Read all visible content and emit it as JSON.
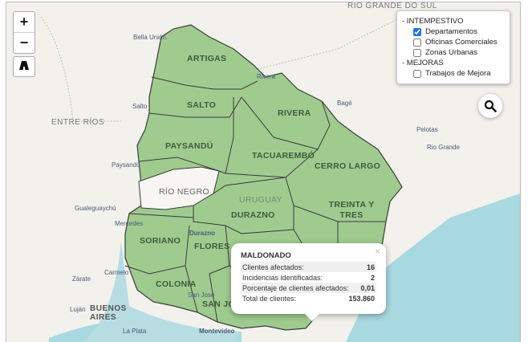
{
  "colors": {
    "department_fill": "#9fcb8f",
    "department_stroke": "#3b3b3b",
    "water": "#a8d8e0",
    "land": "#f3f1ec",
    "checkbox_accent": "#1e73e8"
  },
  "map_labels": {
    "regions": [
      "RIO GRANDE DO SUL",
      "ENTRE RÍOS",
      "BUENOS AIRES"
    ],
    "cities": [
      "Bella Unión",
      "Rivera",
      "Salto",
      "Bagé",
      "Paysandú",
      "Pelotas",
      "Rio Grande",
      "Gualeguaychú",
      "Mercedes",
      "Carmelo",
      "Zárate",
      "Luján",
      "La Plata",
      "San José",
      "Montevideo",
      "Durazno"
    ],
    "departments": [
      "ARTIGAS",
      "SALTO",
      "RIVERA",
      "PAYSANDÚ",
      "TACUAREMBÓ",
      "CERRO LARGO",
      "RÍO NEGRO",
      "URUGUAY",
      "DURAZNO",
      "TREINTA Y TRES",
      "SORIANO",
      "FLORES",
      "COLONIA",
      "SAN JOSÉ"
    ]
  },
  "controls": {
    "zoom_in": "+",
    "zoom_out": "−",
    "road_icon": "road-icon",
    "search_icon": "search-icon"
  },
  "layers": {
    "groups": [
      {
        "label": "- INTEMPESTIVO",
        "items": [
          {
            "label": "Departamentos",
            "checked": true
          },
          {
            "label": "Oficinas Comerciales",
            "checked": false
          },
          {
            "label": "Zonas Urbanas",
            "checked": false
          }
        ]
      },
      {
        "label": "- MEJORAS",
        "items": [
          {
            "label": "Trabajos de Mejora",
            "checked": false
          }
        ]
      }
    ]
  },
  "popup": {
    "title": "MALDONADO",
    "close": "×",
    "rows": [
      {
        "label": "Clientes afectados:",
        "value": "16"
      },
      {
        "label": "Incidencias identificadas:",
        "value": "2"
      },
      {
        "label": "Porcentaje de clientes afectados:",
        "value": "0,01"
      },
      {
        "label": "Total de clientes:",
        "value": "153.860"
      }
    ]
  }
}
